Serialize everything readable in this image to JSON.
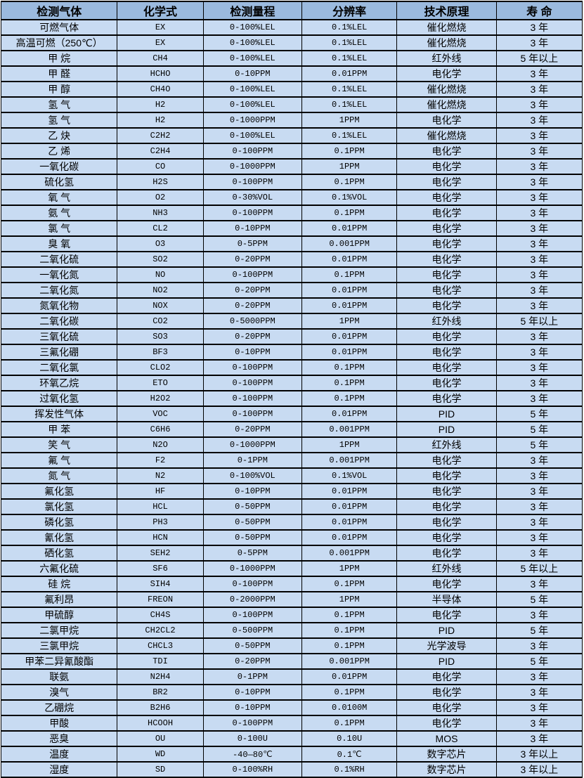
{
  "colors": {
    "header_bg": "#9bbade",
    "row_bg": "#c8dbf2",
    "border": "#000000",
    "text": "#000000"
  },
  "table": {
    "columns": [
      "检测气体",
      "化学式",
      "检测量程",
      "分辨率",
      "技术原理",
      "寿 命"
    ],
    "rows": [
      [
        "可燃气体",
        "EX",
        "0-100%LEL",
        "0.1%LEL",
        "催化燃烧",
        "3 年"
      ],
      [
        "高温可燃（250℃）",
        "EX",
        "0-100%LEL",
        "0.1%LEL",
        "催化燃烧",
        "3 年"
      ],
      [
        "甲 烷",
        "CH4",
        "0-100%LEL",
        "0.1%LEL",
        "红外线",
        "5 年以上"
      ],
      [
        "甲 醛",
        "HCHO",
        "0-10PPM",
        "0.01PPM",
        "电化学",
        "3 年"
      ],
      [
        "甲 醇",
        "CH4O",
        "0-100%LEL",
        "0.1%LEL",
        "催化燃烧",
        "3 年"
      ],
      [
        "氢 气",
        "H2",
        "0-100%LEL",
        "0.1%LEL",
        "催化燃烧",
        "3 年"
      ],
      [
        "氢 气",
        "H2",
        "0-1000PPM",
        "1PPM",
        "电化学",
        "3 年"
      ],
      [
        "乙 炔",
        "C2H2",
        "0-100%LEL",
        "0.1%LEL",
        "催化燃烧",
        "3 年"
      ],
      [
        "乙 烯",
        "C2H4",
        "0-100PPM",
        "0.1PPM",
        "电化学",
        "3 年"
      ],
      [
        "一氧化碳",
        "CO",
        "0-1000PPM",
        "1PPM",
        "电化学",
        "3 年"
      ],
      [
        "硫化氢",
        "H2S",
        "0-100PPM",
        "0.1PPM",
        "电化学",
        "3 年"
      ],
      [
        "氧 气",
        "O2",
        "0-30%VOL",
        "0.1%VOL",
        "电化学",
        "3 年"
      ],
      [
        "氨 气",
        "NH3",
        "0-100PPM",
        "0.1PPM",
        "电化学",
        "3 年"
      ],
      [
        "氯 气",
        "CL2",
        "0-10PPM",
        "0.01PPM",
        "电化学",
        "3 年"
      ],
      [
        "臭 氧",
        "O3",
        "0-5PPM",
        "0.001PPM",
        "电化学",
        "3 年"
      ],
      [
        "二氧化硫",
        "SO2",
        "0-20PPM",
        "0.01PPM",
        "电化学",
        "3 年"
      ],
      [
        "一氧化氮",
        "NO",
        "0-100PPM",
        "0.1PPM",
        "电化学",
        "3 年"
      ],
      [
        "二氧化氮",
        "NO2",
        "0-20PPM",
        "0.01PPM",
        "电化学",
        "3 年"
      ],
      [
        "氮氧化物",
        "NOX",
        "0-20PPM",
        "0.01PPM",
        "电化学",
        "3 年"
      ],
      [
        "二氧化碳",
        "CO2",
        "0-5000PPM",
        "1PPM",
        "红外线",
        "5 年以上"
      ],
      [
        "三氧化硫",
        "SO3",
        "0-20PPM",
        "0.01PPM",
        "电化学",
        "3 年"
      ],
      [
        "三氟化硼",
        "BF3",
        "0-10PPM",
        "0.01PPM",
        "电化学",
        "3 年"
      ],
      [
        "二氧化氯",
        "CLO2",
        "0-100PPM",
        "0.1PPM",
        "电化学",
        "3 年"
      ],
      [
        "环氧乙烷",
        "ETO",
        "0-100PPM",
        "0.1PPM",
        "电化学",
        "3 年"
      ],
      [
        "过氧化氢",
        "H2O2",
        "0-100PPM",
        "0.1PPM",
        "电化学",
        "3 年"
      ],
      [
        "挥发性气体",
        "VOC",
        "0-100PPM",
        "0.01PPM",
        "PID",
        "5 年"
      ],
      [
        "甲 苯",
        "C6H6",
        "0-20PPM",
        "0.001PPM",
        "PID",
        "5 年"
      ],
      [
        "笑 气",
        "N2O",
        "0-1000PPM",
        "1PPM",
        "红外线",
        "5 年"
      ],
      [
        "氟 气",
        "F2",
        "0-1PPM",
        "0.001PPM",
        "电化学",
        "3 年"
      ],
      [
        "氮 气",
        "N2",
        "0-100%VOL",
        "0.1%VOL",
        "电化学",
        "3 年"
      ],
      [
        "氟化氢",
        "HF",
        "0-10PPM",
        "0.01PPM",
        "电化学",
        "3 年"
      ],
      [
        "氯化氢",
        "HCL",
        "0-50PPM",
        "0.01PPM",
        "电化学",
        "3 年"
      ],
      [
        "磷化氢",
        "PH3",
        "0-50PPM",
        "0.01PPM",
        "电化学",
        "3 年"
      ],
      [
        "氰化氢",
        "HCN",
        "0-50PPM",
        "0.01PPM",
        "电化学",
        "3 年"
      ],
      [
        "硒化氢",
        "SEH2",
        "0-5PPM",
        "0.001PPM",
        "电化学",
        "3 年"
      ],
      [
        "六氟化硫",
        "SF6",
        "0-1000PPM",
        "1PPM",
        "红外线",
        "5 年以上"
      ],
      [
        "硅 烷",
        "SIH4",
        "0-100PPM",
        "0.1PPM",
        "电化学",
        "3 年"
      ],
      [
        "氟利昂",
        "FREON",
        "0-2000PPM",
        "1PPM",
        "半导体",
        "5 年"
      ],
      [
        "甲硫醇",
        "CH4S",
        "0-100PPM",
        "0.1PPM",
        "电化学",
        "3 年"
      ],
      [
        "二氯甲烷",
        "CH2CL2",
        "0-500PPM",
        "0.1PPM",
        "PID",
        "5 年"
      ],
      [
        "三氯甲烷",
        "CHCL3",
        "0-50PPM",
        "0.1PPM",
        "光学波导",
        "3 年"
      ],
      [
        "甲苯二异氰酸酯",
        "TDI",
        "0-20PPM",
        "0.001PPM",
        "PID",
        "5 年"
      ],
      [
        "联氨",
        "N2H4",
        "0-1PPM",
        "0.01PPM",
        "电化学",
        "3 年"
      ],
      [
        "溴气",
        "BR2",
        "0-10PPM",
        "0.1PPM",
        "电化学",
        "3 年"
      ],
      [
        "乙硼烷",
        "B2H6",
        "0-10PPM",
        "0.0100M",
        "电化学",
        "3 年"
      ],
      [
        "甲酸",
        "HCOOH",
        "0-100PPM",
        "0.1PPM",
        "电化学",
        "3 年"
      ],
      [
        "恶臭",
        "OU",
        "0-100U",
        "0.10U",
        "MOS",
        "3 年"
      ],
      [
        "温度",
        "WD",
        "-40—80℃",
        "0.1℃",
        "数字芯片",
        "3 年以上"
      ],
      [
        "湿度",
        "SD",
        "0-100%RH",
        "0.1%RH",
        "数字芯片",
        "3 年以上"
      ]
    ]
  }
}
